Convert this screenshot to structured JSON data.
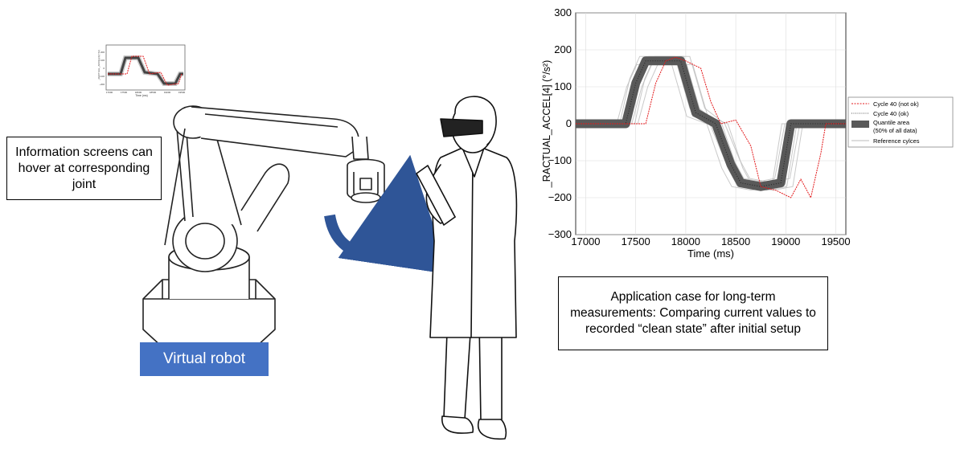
{
  "info_box": {
    "text": "Information screens can hover at corresponding joint"
  },
  "app_box": {
    "text": "Application case for long-term measurements: Comparing current values to recorded “clean state” after initial setup"
  },
  "robot_label": {
    "text": "Virtual robot"
  },
  "colors": {
    "label_bg": "#4472c4",
    "arrow": "#2f5597",
    "ok_series": "#555555",
    "not_ok_series": "#e31a1c",
    "quantile": "#595959",
    "reference": "#bbbbbb"
  },
  "chart_data": [
    {
      "type": "line",
      "ylabel": "_RACTUAL_ACCEL[4] (°/s²)",
      "xlabel": "Time (ms)",
      "xlim": [
        16900,
        19600
      ],
      "ylim": [
        -300,
        300
      ],
      "xticks": [
        "17000",
        "17500",
        "18000",
        "18500",
        "19000",
        "19500"
      ],
      "yticks": [
        "300",
        "200",
        "100",
        "0",
        "−100",
        "−200",
        "−300"
      ],
      "legend_position": "right",
      "legend": [
        "Cycle 40 (not ok)",
        "Cycle 40 (ok)",
        "Quantile area",
        "(50% of all data)",
        "Reference cylces"
      ],
      "series": [
        {
          "name": "Quantile area",
          "x": [
            16900,
            17400,
            17500,
            17600,
            17950,
            18100,
            18300,
            18450,
            18550,
            18750,
            18950,
            19050,
            19600
          ],
          "values": [
            0,
            0,
            110,
            170,
            170,
            30,
            0,
            -110,
            -160,
            -170,
            -160,
            0,
            0
          ]
        },
        {
          "name": "Cycle 40 (not ok)",
          "x": [
            16900,
            17600,
            17700,
            17800,
            17900,
            18000,
            18150,
            18250,
            18350,
            18500,
            18650,
            18750,
            18900,
            19050,
            19150,
            19250,
            19350,
            19400,
            19600
          ],
          "values": [
            0,
            0,
            110,
            170,
            180,
            170,
            150,
            60,
            0,
            10,
            -60,
            -170,
            -180,
            -200,
            -150,
            -200,
            -80,
            0,
            0
          ]
        }
      ]
    },
    {
      "type": "line",
      "ylabel": "_RACTUAL_ACCEL[4] (°/s²)",
      "xlabel": "Time (ms)",
      "xticks": [
        "17000",
        "17500",
        "18000",
        "18500",
        "19000",
        "19500"
      ],
      "yticks": [
        "200",
        "100",
        "0",
        "−100",
        "−200"
      ]
    }
  ]
}
